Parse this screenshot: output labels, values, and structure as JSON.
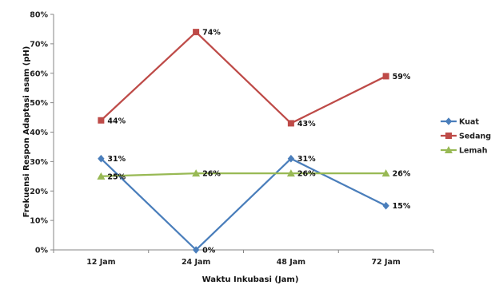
{
  "chart_data": {
    "type": "line",
    "categories": [
      "12 Jam",
      "24 Jam",
      "48 Jam",
      "72 Jam"
    ],
    "xlabel": "Waktu Inkubasi (Jam)",
    "ylabel": "Frekuensi Respon Adaptasi asam (pH)",
    "ylim": [
      0,
      80
    ],
    "yticks": [
      "0%",
      "10%",
      "20%",
      "30%",
      "40%",
      "50%",
      "60%",
      "70%",
      "80%"
    ],
    "legend_position": "right",
    "grid": false,
    "series": [
      {
        "name": "Kuat",
        "values": [
          31,
          0,
          31,
          15
        ],
        "labels": [
          "31%",
          "0%",
          "31%",
          "15%"
        ],
        "color": "#4a7ebb",
        "marker": "diamond"
      },
      {
        "name": "Sedang",
        "values": [
          44,
          74,
          43,
          59
        ],
        "labels": [
          "44%",
          "74%",
          "43%",
          "59%"
        ],
        "color": "#be4b48",
        "marker": "square"
      },
      {
        "name": "Lemah",
        "values": [
          25,
          26,
          26,
          26
        ],
        "labels": [
          "25%",
          "26%",
          "26%",
          "26%"
        ],
        "color": "#98b954",
        "marker": "triangle"
      }
    ]
  }
}
